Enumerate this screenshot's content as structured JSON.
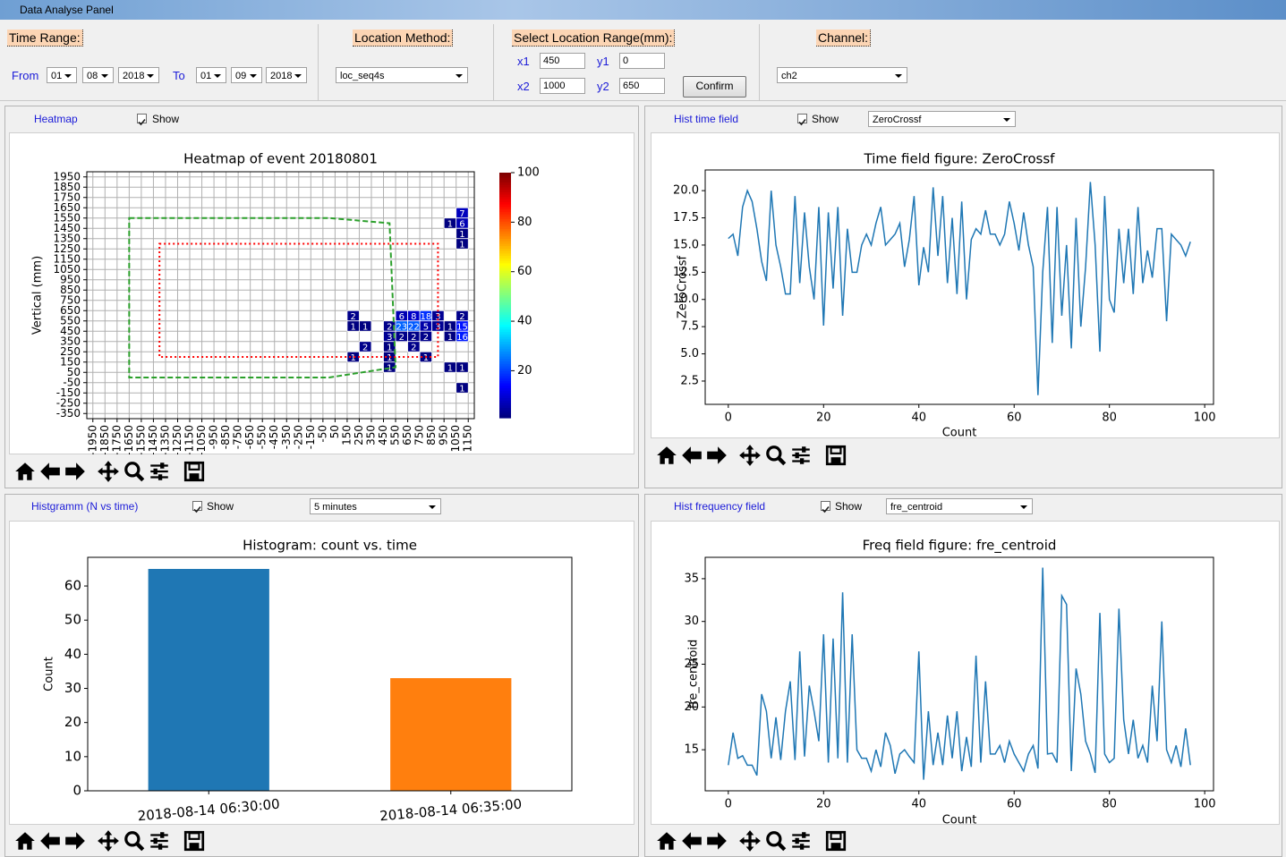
{
  "window": {
    "title": "Data Analyse Panel"
  },
  "controls": {
    "time_range": {
      "label": "Time Range:",
      "from_label": "From",
      "from": [
        "01",
        "08",
        "2018"
      ],
      "to_label": "To",
      "to": [
        "01",
        "09",
        "2018"
      ]
    },
    "location_method": {
      "label": "Location Method:",
      "value": "loc_seq4s"
    },
    "location_range": {
      "label": "Select Location Range(mm):",
      "x1_label": "x1",
      "x1": "450",
      "y1_label": "y1",
      "y1": "0",
      "x2_label": "x2",
      "x2": "1000",
      "y2_label": "y2",
      "y2": "650",
      "button": "Confirm"
    },
    "channel": {
      "label": "Channel:",
      "value": "ch2"
    }
  },
  "panels": [
    {
      "label": "Heatmap",
      "show": "Show"
    },
    {
      "label": "Hist time field",
      "show": "Show",
      "select": "ZeroCrossf"
    },
    {
      "label": "Histgramm (N vs time)",
      "show": "Show",
      "select": "5 minutes"
    },
    {
      "label": "Hist frequency field",
      "show": "Show",
      "select": "fre_centroid"
    }
  ],
  "chart_data": [
    {
      "type": "heatmap",
      "title": "Heatmap of event 20180801",
      "ylabel": "Vertical (mm)",
      "xlim": [
        -2000,
        1200
      ],
      "ylim": [
        -400,
        2000
      ],
      "grid": true,
      "xticks": [
        -1950,
        -1850,
        -1750,
        -1650,
        -1550,
        -1450,
        -1350,
        -1250,
        -1150,
        -1050,
        -950,
        -850,
        -750,
        -650,
        -550,
        -450,
        -350,
        -250,
        -150,
        -50,
        50,
        150,
        250,
        350,
        450,
        550,
        650,
        750,
        850,
        950,
        1050,
        1150
      ],
      "yticks": [
        1950,
        1850,
        1750,
        1650,
        1550,
        1450,
        1350,
        1250,
        1150,
        1050,
        950,
        850,
        750,
        650,
        550,
        450,
        350,
        250,
        150,
        50,
        -50,
        -150,
        -250,
        -350
      ],
      "cells": {
        "x": [
          1100,
          1000,
          1100,
          1100,
          1100,
          200,
          200,
          300,
          300,
          200,
          600,
          700,
          800,
          900,
          500,
          600,
          700,
          800,
          900,
          500,
          600,
          700,
          800,
          500,
          700,
          500,
          800,
          500,
          1100,
          1000,
          1100,
          1000,
          1100,
          1000,
          1100,
          1100
        ],
        "y": [
          1600,
          1500,
          1500,
          1400,
          1300,
          600,
          500,
          500,
          300,
          200,
          600,
          600,
          600,
          600,
          500,
          500,
          500,
          500,
          500,
          400,
          400,
          400,
          400,
          300,
          300,
          200,
          200,
          100,
          600,
          500,
          500,
          400,
          400,
          100,
          100,
          -100
        ],
        "values": [
          7,
          1,
          6,
          1,
          1,
          2,
          1,
          1,
          2,
          1,
          6,
          8,
          18,
          3,
          2,
          23,
          22,
          5,
          3,
          3,
          2,
          2,
          2,
          1,
          2,
          1,
          1,
          1,
          2,
          1,
          15,
          1,
          16,
          1,
          1,
          1
        ]
      },
      "colormap": "jet",
      "clim": [
        1,
        100
      ],
      "cticks": [
        20,
        40,
        60,
        80,
        100
      ],
      "regions": [
        {
          "color": "#2ca02c",
          "style": "dashed",
          "x": [
            -1650,
            0,
            500,
            550,
            0,
            -1650
          ],
          "y": [
            1550,
            1550,
            1500,
            100,
            0,
            0
          ]
        },
        {
          "color": "#ff0000",
          "style": "dotted",
          "x": [
            -1400,
            900,
            900,
            -1400
          ],
          "y": [
            1300,
            1300,
            200,
            200
          ]
        }
      ]
    },
    {
      "type": "line",
      "title": "Time field figure: ZeroCrossf",
      "xlabel": "Count",
      "ylabel": "ZeroCrossf",
      "color": "#1f77b4",
      "xlim": [
        -4.85,
        101.85
      ],
      "ylim": [
        0.36,
        21.9
      ],
      "xticks": [
        0,
        20,
        40,
        60,
        80,
        100
      ],
      "yticks": [
        2.5,
        {
          "value": 5,
          "label": "5.0"
        },
        7.5,
        {
          "value": 10,
          "label": "10.0"
        },
        12.5,
        {
          "value": 15,
          "label": "15.0"
        },
        17.5,
        {
          "value": 20,
          "label": "20.0"
        }
      ],
      "x": [
        0,
        1,
        2,
        3,
        4,
        5,
        6,
        7,
        8,
        9,
        10,
        11,
        12,
        13,
        14,
        15,
        16,
        17,
        18,
        19,
        20,
        21,
        22,
        23,
        24,
        25,
        26,
        27,
        28,
        29,
        30,
        31,
        32,
        33,
        34,
        35,
        36,
        37,
        38,
        39,
        40,
        41,
        42,
        43,
        44,
        45,
        46,
        47,
        48,
        49,
        50,
        51,
        52,
        53,
        54,
        55,
        56,
        57,
        58,
        59,
        60,
        61,
        62,
        63,
        64,
        65,
        66,
        67,
        68,
        69,
        70,
        71,
        72,
        73,
        74,
        75,
        76,
        77,
        78,
        79,
        80,
        81,
        82,
        83,
        84,
        85,
        86,
        87,
        88,
        89,
        90,
        91,
        92,
        93,
        94,
        95,
        96,
        97
      ],
      "values": [
        15.6,
        16,
        14,
        18.5,
        20,
        19,
        16.5,
        13.5,
        11.7,
        20,
        15,
        13,
        10.5,
        10.5,
        19.5,
        11.5,
        18,
        13,
        10,
        18.5,
        7.6,
        18,
        11,
        18.5,
        8.5,
        16.5,
        12.5,
        12.5,
        15,
        16,
        15,
        17,
        18.5,
        15,
        15.5,
        16,
        17,
        13,
        15.5,
        19.5,
        11.3,
        14.8,
        12.5,
        20.3,
        14,
        19.5,
        11.5,
        17.5,
        10.5,
        19,
        10,
        15.5,
        16.5,
        16,
        18.2,
        16,
        16,
        15,
        16,
        19,
        17,
        14.5,
        18,
        15,
        13,
        1.2,
        12.5,
        18.5,
        6,
        18.5,
        8.5,
        15,
        5.5,
        17.5,
        7.5,
        13,
        20.8,
        15,
        5.2,
        19.5,
        10,
        8.8,
        16.5,
        11.5,
        16.5,
        10.5,
        18.5,
        11.5,
        14.5,
        12,
        16.5,
        16.5,
        8,
        16,
        15.5,
        15,
        14,
        15.3
      ]
    },
    {
      "type": "bar",
      "title": "Histogram: count vs. time",
      "ylabel": "Count",
      "categories": [
        "2018-08-14 06:30:00",
        "2018-08-14 06:35:00"
      ],
      "values": [
        65,
        33
      ],
      "colors": [
        "#1f77b4",
        "#ff7f0e"
      ],
      "ylim": [
        0,
        68.4
      ],
      "yticks": [
        0,
        10,
        20,
        30,
        40,
        50,
        60
      ]
    },
    {
      "type": "line",
      "title": "Freq field figure: fre_centroid",
      "xlabel": "Count",
      "ylabel": "fre_centroid",
      "color": "#1f77b4",
      "xlim": [
        -4.85,
        101.85
      ],
      "ylim": [
        10.2,
        37.5
      ],
      "xticks": [
        0,
        20,
        40,
        60,
        80,
        100
      ],
      "yticks": [
        15,
        20,
        25,
        30,
        35
      ],
      "x": [
        0,
        1,
        2,
        3,
        4,
        5,
        6,
        7,
        8,
        9,
        10,
        11,
        12,
        13,
        14,
        15,
        16,
        17,
        18,
        19,
        20,
        21,
        22,
        23,
        24,
        25,
        26,
        27,
        28,
        29,
        30,
        31,
        32,
        33,
        34,
        35,
        36,
        37,
        38,
        39,
        40,
        41,
        42,
        43,
        44,
        45,
        46,
        47,
        48,
        49,
        50,
        51,
        52,
        53,
        54,
        55,
        56,
        57,
        58,
        59,
        60,
        61,
        62,
        63,
        64,
        65,
        66,
        67,
        68,
        69,
        70,
        71,
        72,
        73,
        74,
        75,
        76,
        77,
        78,
        79,
        80,
        81,
        82,
        83,
        84,
        85,
        86,
        87,
        88,
        89,
        90,
        91,
        92,
        93,
        94,
        95,
        96,
        97
      ],
      "values": [
        13.2,
        17,
        14,
        14.3,
        13.2,
        13.2,
        12,
        21.5,
        19.5,
        14,
        18.8,
        13.8,
        19.5,
        23,
        13.8,
        26.5,
        14.2,
        22.5,
        19.5,
        16,
        28.5,
        13.5,
        28,
        14,
        33.4,
        13.5,
        28.5,
        15,
        14,
        14,
        12.5,
        15,
        13,
        17,
        15.5,
        12.2,
        14.5,
        15,
        14.2,
        13.5,
        26.5,
        11.5,
        19.5,
        13.2,
        17,
        13.2,
        19,
        14,
        19.5,
        12.5,
        16.5,
        13,
        26,
        13.5,
        23,
        14.5,
        14.5,
        15.5,
        13.5,
        16,
        14.5,
        13.5,
        12.5,
        14.5,
        15.5,
        12.8,
        36.3,
        14.5,
        14.6,
        13.5,
        33,
        32,
        12.5,
        24.5,
        21.5,
        16,
        14.5,
        12.3,
        31,
        14.5,
        13.5,
        14,
        31.5,
        18.5,
        14.5,
        18.5,
        14,
        15.5,
        13.5,
        22.5,
        16,
        30,
        15,
        13.5,
        15.5,
        13,
        17.5,
        13.2
      ]
    }
  ]
}
